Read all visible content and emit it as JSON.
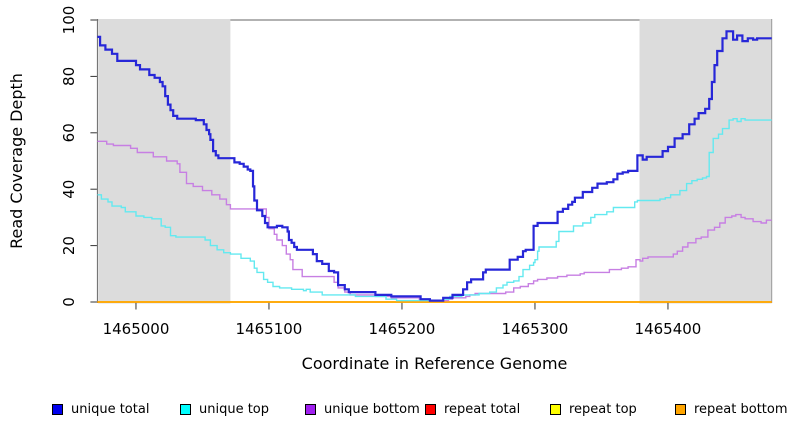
{
  "figure": {
    "xlabel": "Coordinate in Reference Genome",
    "ylabel": "Read Coverage Depth",
    "background": "#ffffff",
    "plot_box_color": "#666666",
    "tick_color": "#333333",
    "shaded_region_color": "#dcdcdc"
  },
  "chart_data": {
    "type": "line",
    "subtype": "step-after",
    "title": "",
    "xlabel": "Coordinate in Reference Genome",
    "ylabel": "Read Coverage Depth",
    "xlim": [
      1464971,
      1465478
    ],
    "ylim": [
      0,
      100
    ],
    "x_ticks": [
      1465000,
      1465100,
      1465200,
      1465300,
      1465400
    ],
    "y_ticks": [
      0,
      20,
      40,
      60,
      80,
      100
    ],
    "grid": false,
    "legend_position": "bottom",
    "shaded_regions": [
      {
        "x0": 1464971,
        "x1": 1465071,
        "color": "#dcdcdc"
      },
      {
        "x0": 1465378,
        "x1": 1465478,
        "color": "#dcdcdc"
      }
    ],
    "series": [
      {
        "name": "unique total",
        "color": "#2727d8",
        "legend_color": "#0000ee",
        "width": 2.2,
        "points": [
          [
            1464971,
            94
          ],
          [
            1464973,
            91
          ],
          [
            1464977,
            89.5
          ],
          [
            1464982,
            88
          ],
          [
            1464986,
            85.5
          ],
          [
            1465000,
            84
          ],
          [
            1465003,
            82.5
          ],
          [
            1465010,
            80.5
          ],
          [
            1465014,
            79.5
          ],
          [
            1465018,
            78
          ],
          [
            1465020,
            76.5
          ],
          [
            1465022,
            73
          ],
          [
            1465024,
            70
          ],
          [
            1465026,
            68
          ],
          [
            1465028,
            66
          ],
          [
            1465031,
            65
          ],
          [
            1465045,
            64.5
          ],
          [
            1465051,
            63
          ],
          [
            1465053,
            61
          ],
          [
            1465055,
            59.5
          ],
          [
            1465056,
            57.5
          ],
          [
            1465058,
            53.5
          ],
          [
            1465060,
            52
          ],
          [
            1465062,
            51
          ],
          [
            1465074,
            49.5
          ],
          [
            1465078,
            49
          ],
          [
            1465081,
            48
          ],
          [
            1465084,
            47
          ],
          [
            1465086,
            46.5
          ],
          [
            1465088,
            41
          ],
          [
            1465089,
            36
          ],
          [
            1465091,
            32.5
          ],
          [
            1465095,
            30.5
          ],
          [
            1465097,
            28
          ],
          [
            1465099,
            26.5
          ],
          [
            1465106,
            27
          ],
          [
            1465110,
            26.5
          ],
          [
            1465114,
            25
          ],
          [
            1465115,
            22
          ],
          [
            1465117,
            21
          ],
          [
            1465119,
            19.5
          ],
          [
            1465121,
            18.5
          ],
          [
            1465133,
            17
          ],
          [
            1465136,
            14.5
          ],
          [
            1465140,
            13.5
          ],
          [
            1465145,
            11
          ],
          [
            1465149,
            10.5
          ],
          [
            1465152,
            6
          ],
          [
            1465157,
            4.5
          ],
          [
            1465160,
            3.5
          ],
          [
            1465180,
            2.5
          ],
          [
            1465192,
            2
          ],
          [
            1465214,
            1
          ],
          [
            1465221,
            0.5
          ],
          [
            1465231,
            1.5
          ],
          [
            1465238,
            2.5
          ],
          [
            1465246,
            4.5
          ],
          [
            1465249,
            7
          ],
          [
            1465252,
            8
          ],
          [
            1465261,
            10.5
          ],
          [
            1465263,
            11.5
          ],
          [
            1465281,
            15
          ],
          [
            1465287,
            16
          ],
          [
            1465291,
            18
          ],
          [
            1465293,
            18.5
          ],
          [
            1465299,
            27
          ],
          [
            1465302,
            28
          ],
          [
            1465317,
            32
          ],
          [
            1465321,
            33
          ],
          [
            1465325,
            34.5
          ],
          [
            1465328,
            35.5
          ],
          [
            1465330,
            37
          ],
          [
            1465336,
            39
          ],
          [
            1465343,
            40.5
          ],
          [
            1465347,
            42
          ],
          [
            1465354,
            42.5
          ],
          [
            1465359,
            43.5
          ],
          [
            1465362,
            45.5
          ],
          [
            1465366,
            46
          ],
          [
            1465370,
            46.5
          ],
          [
            1465377,
            52
          ],
          [
            1465381,
            50.5
          ],
          [
            1465384,
            51.5
          ],
          [
            1465396,
            53.5
          ],
          [
            1465400,
            55
          ],
          [
            1465405,
            58
          ],
          [
            1465411,
            59.5
          ],
          [
            1465416,
            63
          ],
          [
            1465420,
            65
          ],
          [
            1465423,
            67
          ],
          [
            1465428,
            68.5
          ],
          [
            1465431,
            72
          ],
          [
            1465433,
            78
          ],
          [
            1465435,
            84
          ],
          [
            1465437,
            89
          ],
          [
            1465441,
            93.5
          ],
          [
            1465444,
            96
          ],
          [
            1465449,
            93
          ],
          [
            1465452,
            94.5
          ],
          [
            1465456,
            92.5
          ],
          [
            1465460,
            93.5
          ],
          [
            1465464,
            93
          ],
          [
            1465467,
            93.5
          ],
          [
            1465478,
            93.5
          ]
        ]
      },
      {
        "name": "unique top",
        "color": "#63e9f0",
        "legend_color": "#00ffff",
        "width": 1.4,
        "points": [
          [
            1464971,
            38
          ],
          [
            1464974,
            36.5
          ],
          [
            1464979,
            35.5
          ],
          [
            1464982,
            34
          ],
          [
            1464989,
            33.5
          ],
          [
            1464992,
            32
          ],
          [
            1465000,
            30.5
          ],
          [
            1465006,
            30
          ],
          [
            1465012,
            29.5
          ],
          [
            1465019,
            27
          ],
          [
            1465022,
            26.5
          ],
          [
            1465026,
            23.5
          ],
          [
            1465030,
            23
          ],
          [
            1465052,
            22
          ],
          [
            1465056,
            20
          ],
          [
            1465061,
            18.5
          ],
          [
            1465066,
            17.5
          ],
          [
            1465071,
            17
          ],
          [
            1465079,
            15.5
          ],
          [
            1465086,
            14.5
          ],
          [
            1465089,
            12
          ],
          [
            1465091,
            10.5
          ],
          [
            1465096,
            8
          ],
          [
            1465099,
            7
          ],
          [
            1465103,
            5.5
          ],
          [
            1465108,
            5
          ],
          [
            1465117,
            4.5
          ],
          [
            1465126,
            4
          ],
          [
            1465128,
            4.5
          ],
          [
            1465131,
            3.5
          ],
          [
            1465140,
            2.5
          ],
          [
            1465165,
            2
          ],
          [
            1465188,
            1
          ],
          [
            1465196,
            0.5
          ],
          [
            1465231,
            1
          ],
          [
            1465236,
            2
          ],
          [
            1465245,
            2.5
          ],
          [
            1465258,
            3
          ],
          [
            1465266,
            3.5
          ],
          [
            1465271,
            5
          ],
          [
            1465276,
            6
          ],
          [
            1465279,
            7
          ],
          [
            1465284,
            7.5
          ],
          [
            1465288,
            9
          ],
          [
            1465291,
            11.5
          ],
          [
            1465296,
            13
          ],
          [
            1465299,
            14
          ],
          [
            1465300,
            15
          ],
          [
            1465302,
            18
          ],
          [
            1465303,
            19.5
          ],
          [
            1465316,
            21.5
          ],
          [
            1465318,
            25
          ],
          [
            1465329,
            27
          ],
          [
            1465336,
            28
          ],
          [
            1465342,
            30
          ],
          [
            1465345,
            31
          ],
          [
            1465354,
            32
          ],
          [
            1465359,
            33.5
          ],
          [
            1465375,
            35.5
          ],
          [
            1465377,
            36
          ],
          [
            1465394,
            36.5
          ],
          [
            1465398,
            37
          ],
          [
            1465402,
            38
          ],
          [
            1465409,
            39.5
          ],
          [
            1465414,
            42
          ],
          [
            1465418,
            43
          ],
          [
            1465422,
            43.5
          ],
          [
            1465426,
            44
          ],
          [
            1465429,
            44.5
          ],
          [
            1465431,
            53
          ],
          [
            1465434,
            58
          ],
          [
            1465438,
            59.5
          ],
          [
            1465441,
            61.5
          ],
          [
            1465446,
            64.5
          ],
          [
            1465449,
            65
          ],
          [
            1465452,
            64
          ],
          [
            1465455,
            65
          ],
          [
            1465458,
            64.5
          ],
          [
            1465478,
            64.5
          ]
        ]
      },
      {
        "name": "unique bottom",
        "color": "#c77fe3",
        "legend_color": "#a020f0",
        "width": 1.4,
        "points": [
          [
            1464971,
            57
          ],
          [
            1464978,
            56
          ],
          [
            1464983,
            55.5
          ],
          [
            1464996,
            54.5
          ],
          [
            1465001,
            53
          ],
          [
            1465013,
            51.5
          ],
          [
            1465023,
            50
          ],
          [
            1465031,
            49
          ],
          [
            1465033,
            46
          ],
          [
            1465038,
            42
          ],
          [
            1465043,
            41
          ],
          [
            1465050,
            39.5
          ],
          [
            1465057,
            38
          ],
          [
            1465063,
            36.5
          ],
          [
            1465068,
            34.5
          ],
          [
            1465071,
            33
          ],
          [
            1465098,
            30
          ],
          [
            1465100,
            26
          ],
          [
            1465104,
            24
          ],
          [
            1465106,
            22
          ],
          [
            1465110,
            20
          ],
          [
            1465113,
            17
          ],
          [
            1465116,
            15
          ],
          [
            1465118,
            11.5
          ],
          [
            1465125,
            9
          ],
          [
            1465149,
            7
          ],
          [
            1465152,
            5
          ],
          [
            1465157,
            3.5
          ],
          [
            1465161,
            2.5
          ],
          [
            1465180,
            2
          ],
          [
            1465192,
            1.5
          ],
          [
            1465213,
            1
          ],
          [
            1465220,
            0.5
          ],
          [
            1465235,
            1
          ],
          [
            1465238,
            1.5
          ],
          [
            1465248,
            2
          ],
          [
            1465251,
            2.5
          ],
          [
            1465255,
            3
          ],
          [
            1465278,
            3.5
          ],
          [
            1465284,
            5
          ],
          [
            1465289,
            5.5
          ],
          [
            1465295,
            6.5
          ],
          [
            1465299,
            7.5
          ],
          [
            1465302,
            8
          ],
          [
            1465309,
            8.5
          ],
          [
            1465317,
            9
          ],
          [
            1465324,
            9.5
          ],
          [
            1465334,
            10
          ],
          [
            1465337,
            10.5
          ],
          [
            1465356,
            11.5
          ],
          [
            1465365,
            12
          ],
          [
            1465370,
            12.5
          ],
          [
            1465376,
            15
          ],
          [
            1465379,
            14.5
          ],
          [
            1465381,
            15.5
          ],
          [
            1465385,
            16
          ],
          [
            1465404,
            17
          ],
          [
            1465407,
            18
          ],
          [
            1465411,
            19.5
          ],
          [
            1465415,
            21
          ],
          [
            1465421,
            22.5
          ],
          [
            1465425,
            23
          ],
          [
            1465430,
            25.5
          ],
          [
            1465435,
            26.5
          ],
          [
            1465439,
            28
          ],
          [
            1465443,
            30
          ],
          [
            1465448,
            30.5
          ],
          [
            1465451,
            31
          ],
          [
            1465455,
            30
          ],
          [
            1465458,
            29.5
          ],
          [
            1465464,
            28.5
          ],
          [
            1465470,
            28
          ],
          [
            1465474,
            29
          ],
          [
            1465478,
            29
          ]
        ]
      },
      {
        "name": "repeat total",
        "color": "#ff0000",
        "legend_color": "#ff0000",
        "width": 1.4,
        "points": [
          [
            1464971,
            0
          ],
          [
            1465478,
            0
          ]
        ]
      },
      {
        "name": "repeat top",
        "color": "#ffff00",
        "legend_color": "#ffff00",
        "width": 1.4,
        "points": [
          [
            1464971,
            0
          ],
          [
            1465478,
            0
          ]
        ]
      },
      {
        "name": "repeat bottom",
        "color": "#ffa500",
        "legend_color": "#ffa500",
        "width": 1.6,
        "points": [
          [
            1464971,
            0
          ],
          [
            1465478,
            0
          ]
        ]
      }
    ]
  },
  "legend": {
    "item_lefts": [
      52,
      180,
      305,
      425,
      550,
      675
    ]
  }
}
